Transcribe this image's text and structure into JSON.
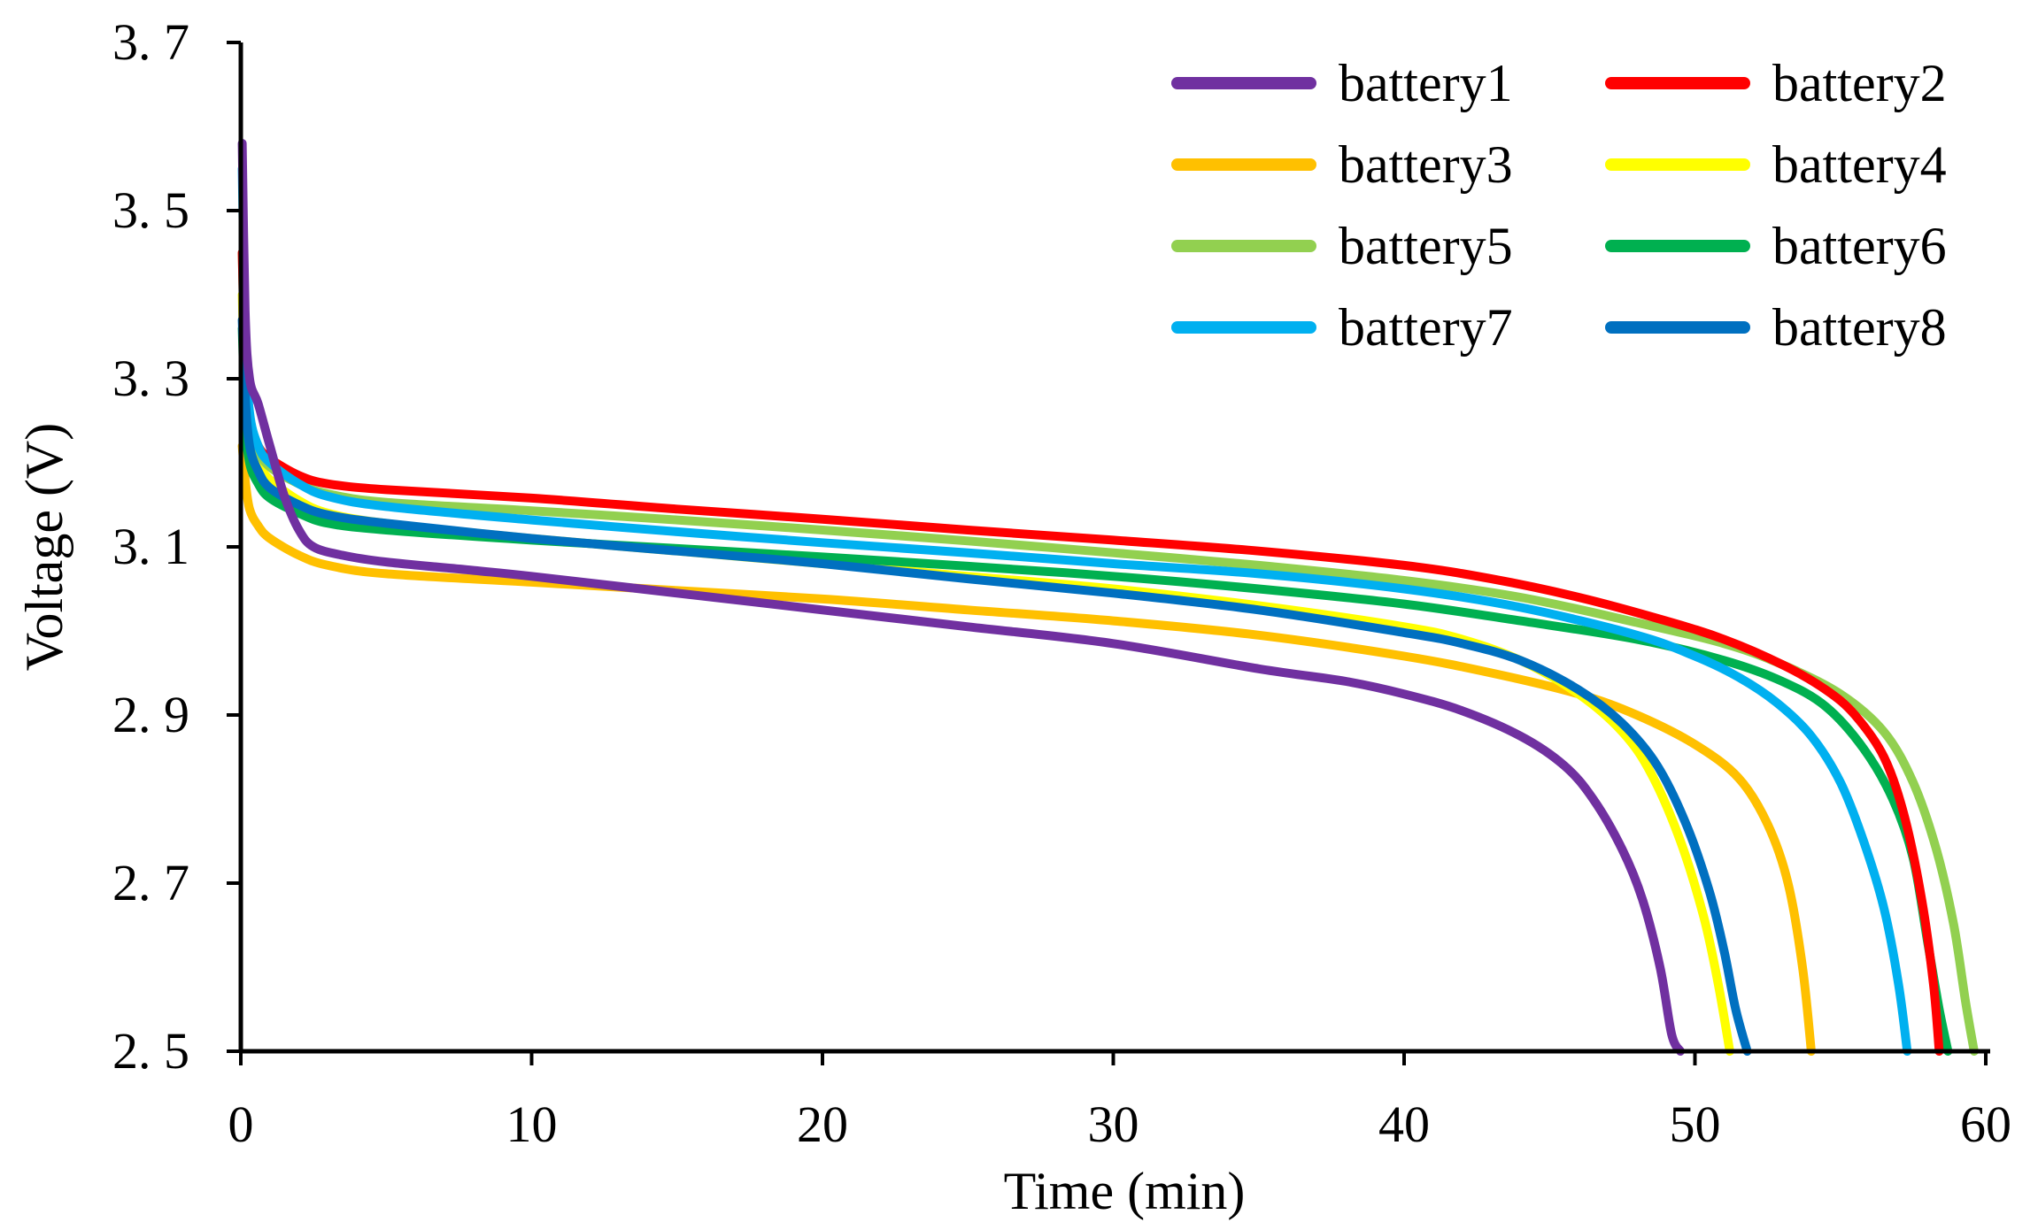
{
  "chart_data": {
    "type": "line",
    "title": "",
    "xlabel": "Time (min)",
    "ylabel": "Voltage (V)",
    "xlim": [
      0,
      60
    ],
    "ylim": [
      2.5,
      3.7
    ],
    "xticks": [
      0,
      10,
      20,
      30,
      40,
      50,
      60
    ],
    "yticks": [
      2.5,
      2.7,
      2.9,
      3.1,
      3.3,
      3.5,
      3.7
    ],
    "ytick_labels": [
      "2. 5",
      "2. 7",
      "2. 9",
      "3. 1",
      "3. 3",
      "3. 5",
      "3. 7"
    ],
    "xtick_labels": [
      "0",
      "10",
      "20",
      "30",
      "40",
      "50",
      "60"
    ],
    "grid": false,
    "legend_position": "top-right",
    "series": [
      {
        "name": "battery1",
        "color": "#7030A0",
        "points": [
          [
            0.05,
            3.58
          ],
          [
            0.15,
            3.38
          ],
          [
            0.3,
            3.3
          ],
          [
            0.6,
            3.27
          ],
          [
            1.0,
            3.22
          ],
          [
            1.5,
            3.16
          ],
          [
            2.0,
            3.12
          ],
          [
            2.5,
            3.1
          ],
          [
            3.5,
            3.09
          ],
          [
            5,
            3.082
          ],
          [
            8,
            3.072
          ],
          [
            10,
            3.065
          ],
          [
            15,
            3.045
          ],
          [
            20,
            3.025
          ],
          [
            25,
            3.005
          ],
          [
            30,
            2.985
          ],
          [
            35,
            2.955
          ],
          [
            38,
            2.94
          ],
          [
            40,
            2.925
          ],
          [
            42,
            2.905
          ],
          [
            44,
            2.875
          ],
          [
            45.5,
            2.84
          ],
          [
            46.5,
            2.8
          ],
          [
            47.5,
            2.74
          ],
          [
            48.2,
            2.68
          ],
          [
            48.8,
            2.6
          ],
          [
            49.2,
            2.52
          ],
          [
            49.5,
            2.5
          ]
        ]
      },
      {
        "name": "battery2",
        "color": "#FF0000",
        "points": [
          [
            0.05,
            3.45
          ],
          [
            0.15,
            3.3
          ],
          [
            0.3,
            3.25
          ],
          [
            0.6,
            3.22
          ],
          [
            1,
            3.205
          ],
          [
            2,
            3.185
          ],
          [
            3,
            3.175
          ],
          [
            5,
            3.168
          ],
          [
            10,
            3.158
          ],
          [
            15,
            3.145
          ],
          [
            20,
            3.133
          ],
          [
            25,
            3.12
          ],
          [
            30,
            3.108
          ],
          [
            35,
            3.095
          ],
          [
            40,
            3.078
          ],
          [
            43,
            3.062
          ],
          [
            46,
            3.04
          ],
          [
            49,
            3.012
          ],
          [
            51,
            2.99
          ],
          [
            53,
            2.96
          ],
          [
            54.5,
            2.93
          ],
          [
            55.5,
            2.9
          ],
          [
            56.5,
            2.85
          ],
          [
            57.2,
            2.78
          ],
          [
            57.8,
            2.68
          ],
          [
            58.2,
            2.58
          ],
          [
            58.4,
            2.5
          ]
        ]
      },
      {
        "name": "battery3",
        "color": "#FFC000",
        "points": [
          [
            0.05,
            3.22
          ],
          [
            0.15,
            3.18
          ],
          [
            0.3,
            3.145
          ],
          [
            0.6,
            3.125
          ],
          [
            1,
            3.11
          ],
          [
            2,
            3.09
          ],
          [
            3,
            3.078
          ],
          [
            5,
            3.068
          ],
          [
            10,
            3.058
          ],
          [
            15,
            3.048
          ],
          [
            20,
            3.038
          ],
          [
            25,
            3.025
          ],
          [
            30,
            3.012
          ],
          [
            35,
            2.995
          ],
          [
            40,
            2.97
          ],
          [
            43,
            2.95
          ],
          [
            46,
            2.925
          ],
          [
            48,
            2.9
          ],
          [
            50,
            2.865
          ],
          [
            51.5,
            2.825
          ],
          [
            52.5,
            2.77
          ],
          [
            53.2,
            2.7
          ],
          [
            53.7,
            2.6
          ],
          [
            54.0,
            2.5
          ]
        ]
      },
      {
        "name": "battery4",
        "color": "#FFFF00",
        "points": [
          [
            0.05,
            3.4
          ],
          [
            0.15,
            3.28
          ],
          [
            0.3,
            3.23
          ],
          [
            0.6,
            3.2
          ],
          [
            1,
            3.18
          ],
          [
            2,
            3.155
          ],
          [
            3,
            3.14
          ],
          [
            5,
            3.128
          ],
          [
            10,
            3.11
          ],
          [
            15,
            3.095
          ],
          [
            20,
            3.08
          ],
          [
            25,
            3.065
          ],
          [
            30,
            3.05
          ],
          [
            35,
            3.03
          ],
          [
            40,
            3.005
          ],
          [
            42,
            2.99
          ],
          [
            44,
            2.965
          ],
          [
            46,
            2.925
          ],
          [
            47.5,
            2.88
          ],
          [
            48.5,
            2.83
          ],
          [
            49.5,
            2.75
          ],
          [
            50.3,
            2.66
          ],
          [
            50.8,
            2.58
          ],
          [
            51.2,
            2.5
          ]
        ]
      },
      {
        "name": "battery5",
        "color": "#92D050",
        "points": [
          [
            0.05,
            3.45
          ],
          [
            0.15,
            3.3
          ],
          [
            0.3,
            3.25
          ],
          [
            0.6,
            3.215
          ],
          [
            1,
            3.195
          ],
          [
            2,
            3.175
          ],
          [
            3,
            3.163
          ],
          [
            5,
            3.153
          ],
          [
            10,
            3.143
          ],
          [
            15,
            3.132
          ],
          [
            20,
            3.12
          ],
          [
            25,
            3.107
          ],
          [
            30,
            3.093
          ],
          [
            35,
            3.078
          ],
          [
            40,
            3.06
          ],
          [
            44,
            3.04
          ],
          [
            48,
            3.01
          ],
          [
            51,
            2.985
          ],
          [
            53,
            2.96
          ],
          [
            55,
            2.925
          ],
          [
            56.5,
            2.88
          ],
          [
            57.5,
            2.82
          ],
          [
            58.3,
            2.74
          ],
          [
            58.9,
            2.65
          ],
          [
            59.3,
            2.56
          ],
          [
            59.6,
            2.5
          ]
        ]
      },
      {
        "name": "battery6",
        "color": "#00B050",
        "points": [
          [
            0.05,
            3.36
          ],
          [
            0.15,
            3.25
          ],
          [
            0.3,
            3.2
          ],
          [
            0.6,
            3.175
          ],
          [
            1,
            3.158
          ],
          [
            2,
            3.14
          ],
          [
            3,
            3.128
          ],
          [
            5,
            3.12
          ],
          [
            10,
            3.108
          ],
          [
            15,
            3.098
          ],
          [
            20,
            3.088
          ],
          [
            25,
            3.077
          ],
          [
            30,
            3.065
          ],
          [
            35,
            3.05
          ],
          [
            40,
            3.032
          ],
          [
            44,
            3.012
          ],
          [
            48,
            2.99
          ],
          [
            51,
            2.965
          ],
          [
            53,
            2.94
          ],
          [
            54.5,
            2.91
          ],
          [
            55.8,
            2.86
          ],
          [
            56.8,
            2.8
          ],
          [
            57.5,
            2.73
          ],
          [
            58.0,
            2.63
          ],
          [
            58.4,
            2.55
          ],
          [
            58.7,
            2.5
          ]
        ]
      },
      {
        "name": "battery7",
        "color": "#00B0F0",
        "points": [
          [
            0.05,
            3.55
          ],
          [
            0.15,
            3.35
          ],
          [
            0.3,
            3.26
          ],
          [
            0.6,
            3.22
          ],
          [
            1,
            3.2
          ],
          [
            2,
            3.175
          ],
          [
            3,
            3.16
          ],
          [
            5,
            3.148
          ],
          [
            10,
            3.132
          ],
          [
            15,
            3.118
          ],
          [
            20,
            3.105
          ],
          [
            25,
            3.093
          ],
          [
            30,
            3.08
          ],
          [
            35,
            3.068
          ],
          [
            40,
            3.05
          ],
          [
            44,
            3.028
          ],
          [
            48,
            2.995
          ],
          [
            50,
            2.97
          ],
          [
            51.5,
            2.945
          ],
          [
            52.8,
            2.915
          ],
          [
            54,
            2.875
          ],
          [
            55,
            2.82
          ],
          [
            55.8,
            2.75
          ],
          [
            56.5,
            2.67
          ],
          [
            57.0,
            2.58
          ],
          [
            57.3,
            2.5
          ]
        ]
      },
      {
        "name": "battery8",
        "color": "#0070C0",
        "points": [
          [
            0.05,
            3.37
          ],
          [
            0.15,
            3.28
          ],
          [
            0.3,
            3.22
          ],
          [
            0.6,
            3.19
          ],
          [
            1,
            3.17
          ],
          [
            2,
            3.15
          ],
          [
            3,
            3.138
          ],
          [
            5,
            3.128
          ],
          [
            10,
            3.11
          ],
          [
            15,
            3.095
          ],
          [
            20,
            3.08
          ],
          [
            25,
            3.062
          ],
          [
            30,
            3.045
          ],
          [
            35,
            3.025
          ],
          [
            40,
            2.998
          ],
          [
            42,
            2.985
          ],
          [
            44,
            2.965
          ],
          [
            46,
            2.93
          ],
          [
            47.5,
            2.89
          ],
          [
            48.7,
            2.84
          ],
          [
            49.7,
            2.77
          ],
          [
            50.5,
            2.69
          ],
          [
            51.0,
            2.62
          ],
          [
            51.4,
            2.55
          ],
          [
            51.8,
            2.5
          ]
        ]
      }
    ]
  }
}
